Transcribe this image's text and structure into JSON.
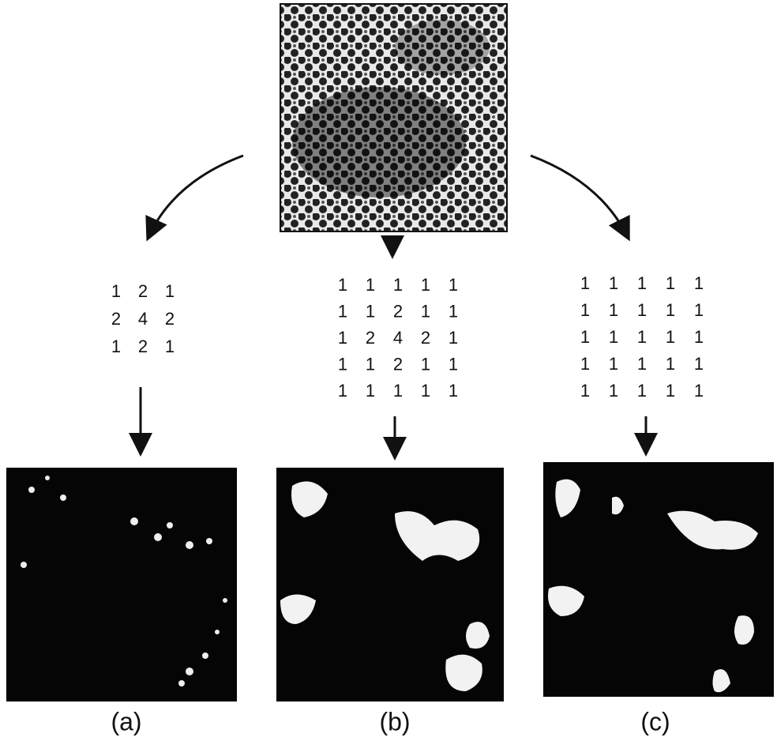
{
  "kernels": [
    {
      "rows": [
        [
          1,
          2,
          1
        ],
        [
          2,
          4,
          2
        ],
        [
          1,
          2,
          1
        ]
      ]
    },
    {
      "rows": [
        [
          1,
          1,
          1,
          1,
          1
        ],
        [
          1,
          1,
          2,
          1,
          1
        ],
        [
          1,
          2,
          4,
          2,
          1
        ],
        [
          1,
          1,
          2,
          1,
          1
        ],
        [
          1,
          1,
          1,
          1,
          1
        ]
      ]
    },
    {
      "rows": [
        [
          1,
          1,
          1,
          1,
          1
        ],
        [
          1,
          1,
          1,
          1,
          1
        ],
        [
          1,
          1,
          1,
          1,
          1
        ],
        [
          1,
          1,
          1,
          1,
          1
        ],
        [
          1,
          1,
          1,
          1,
          1
        ]
      ]
    }
  ],
  "labels": [
    "(a)",
    "(b)",
    "(c)"
  ]
}
